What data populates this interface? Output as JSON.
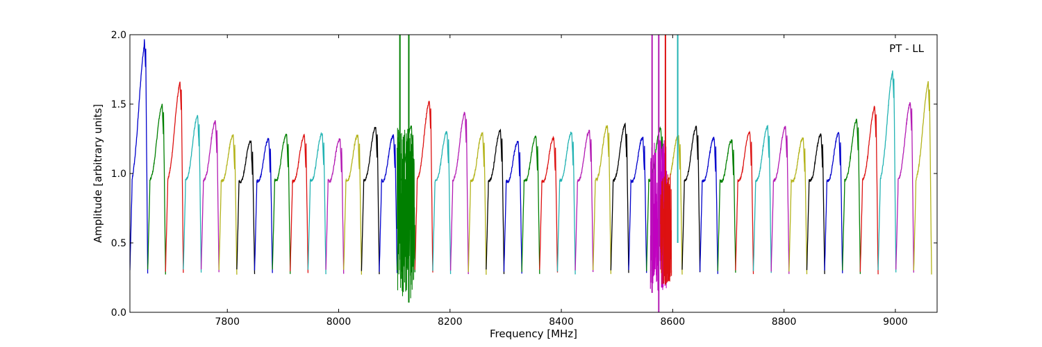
{
  "chart_data": {
    "type": "line",
    "xlabel": "Frequency [MHz]",
    "ylabel": "Amplitude [arbitrary units]",
    "annotation": "PT - LL",
    "annotation_position": "top-right",
    "xlim": [
      7625,
      9075
    ],
    "ylim": [
      0.0,
      2.0
    ],
    "x_ticks": [
      7800,
      8000,
      8200,
      8400,
      8600,
      8800,
      9000
    ],
    "y_ticks": [
      0.0,
      0.5,
      1.0,
      1.5,
      2.0
    ],
    "y_tick_labels": [
      "0.0",
      "0.5",
      "1.0",
      "1.5",
      "2.0"
    ],
    "grid": false,
    "legend": false,
    "channel_width_mhz": 32,
    "channels": [
      {
        "start": 7625,
        "peak": 2.0,
        "color": "#0000cc"
      },
      {
        "start": 7657,
        "peak": 1.52,
        "color": "#007f00"
      },
      {
        "start": 7689,
        "peak": 1.69,
        "color": "#dd1111"
      },
      {
        "start": 7721,
        "peak": 1.43,
        "color": "#22b3b3"
      },
      {
        "start": 7753,
        "peak": 1.39,
        "color": "#b31ab3"
      },
      {
        "start": 7785,
        "peak": 1.27,
        "color": "#b3b31a"
      },
      {
        "start": 7817,
        "peak": 1.22,
        "color": "#000000"
      },
      {
        "start": 7849,
        "peak": 1.24,
        "color": "#0000cc"
      },
      {
        "start": 7881,
        "peak": 1.28,
        "color": "#007f00"
      },
      {
        "start": 7913,
        "peak": 1.27,
        "color": "#dd1111"
      },
      {
        "start": 7945,
        "peak": 1.29,
        "color": "#22b3b3"
      },
      {
        "start": 7977,
        "peak": 1.24,
        "color": "#b31ab3"
      },
      {
        "start": 8009,
        "peak": 1.27,
        "color": "#b3b31a"
      },
      {
        "start": 8041,
        "peak": 1.34,
        "color": "#000000"
      },
      {
        "start": 8073,
        "peak": 1.27,
        "color": "#0000cc"
      },
      {
        "start": 8105,
        "peak": 1.35,
        "color": "#007f00"
      },
      {
        "start": 8137,
        "peak": 1.55,
        "color": "#dd1111"
      },
      {
        "start": 8169,
        "peak": 1.3,
        "color": "#22b3b3"
      },
      {
        "start": 8201,
        "peak": 1.46,
        "color": "#b31ab3"
      },
      {
        "start": 8233,
        "peak": 1.29,
        "color": "#b3b31a"
      },
      {
        "start": 8265,
        "peak": 1.31,
        "color": "#000000"
      },
      {
        "start": 8297,
        "peak": 1.22,
        "color": "#0000cc"
      },
      {
        "start": 8329,
        "peak": 1.26,
        "color": "#007f00"
      },
      {
        "start": 8361,
        "peak": 1.25,
        "color": "#dd1111"
      },
      {
        "start": 8393,
        "peak": 1.3,
        "color": "#22b3b3"
      },
      {
        "start": 8425,
        "peak": 1.31,
        "color": "#b31ab3"
      },
      {
        "start": 8457,
        "peak": 1.35,
        "color": "#b3b31a"
      },
      {
        "start": 8489,
        "peak": 1.36,
        "color": "#000000"
      },
      {
        "start": 8521,
        "peak": 1.25,
        "color": "#0000cc"
      },
      {
        "start": 8553,
        "peak": 1.33,
        "color": "#007f00"
      },
      {
        "start": 8585,
        "peak": 1.27,
        "color": "#b3b31a"
      },
      {
        "start": 8617,
        "peak": 1.34,
        "color": "#000000"
      },
      {
        "start": 8649,
        "peak": 1.25,
        "color": "#0000cc"
      },
      {
        "start": 8681,
        "peak": 1.23,
        "color": "#007f00"
      },
      {
        "start": 8713,
        "peak": 1.3,
        "color": "#dd1111"
      },
      {
        "start": 8745,
        "peak": 1.34,
        "color": "#22b3b3"
      },
      {
        "start": 8777,
        "peak": 1.34,
        "color": "#b31ab3"
      },
      {
        "start": 8809,
        "peak": 1.25,
        "color": "#b3b31a"
      },
      {
        "start": 8841,
        "peak": 1.28,
        "color": "#000000"
      },
      {
        "start": 8873,
        "peak": 1.29,
        "color": "#0000cc"
      },
      {
        "start": 8905,
        "peak": 1.4,
        "color": "#007f00"
      },
      {
        "start": 8937,
        "peak": 1.5,
        "color": "#dd1111"
      },
      {
        "start": 8969,
        "peak": 1.78,
        "color": "#22b3b3"
      },
      {
        "start": 9001,
        "peak": 1.54,
        "color": "#b31ab3"
      },
      {
        "start": 9033,
        "peak": 1.69,
        "color": "#b3b31a"
      }
    ],
    "spikes": [
      {
        "x": 8110,
        "color": "#007f00",
        "top": 2.0,
        "bottom": 0.5
      },
      {
        "x": 8126,
        "color": "#007f00",
        "top": 2.0,
        "bottom": 0.07
      },
      {
        "x": 8563,
        "color": "#b31ab3",
        "top": 2.0,
        "bottom": 0.14
      },
      {
        "x": 8575,
        "color": "#b31ab3",
        "top": 2.0,
        "bottom": 0.0
      },
      {
        "x": 8587,
        "color": "#dd1111",
        "top": 2.0,
        "bottom": 0.2
      },
      {
        "x": 8609,
        "color": "#22b3b3",
        "top": 2.0,
        "bottom": 0.5
      }
    ],
    "noise_regions": [
      {
        "from": 8105,
        "to": 8137,
        "color": "#007f00",
        "low": 0.1,
        "high": 1.35
      },
      {
        "from": 8560,
        "to": 8590,
        "color": "#c000c0",
        "low": 0.15,
        "high": 1.25
      },
      {
        "from": 8578,
        "to": 8598,
        "color": "#dd1111",
        "low": 0.2,
        "high": 1.0
      }
    ]
  }
}
